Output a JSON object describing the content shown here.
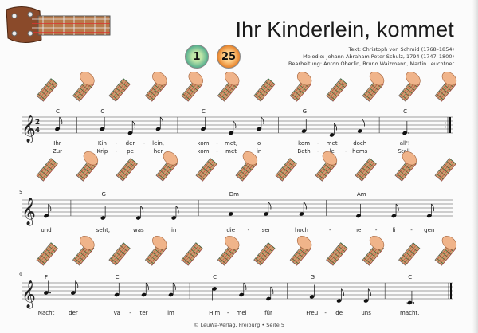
{
  "header": {
    "title": "Ihr Kinderlein, kommet",
    "credits": [
      "Text: Christoph von Schmid (1768–1854)",
      "Melodie: Johann Abraham Peter Schulz, 1794 (1747–1800)",
      "Bearbeitung: Anton Oberlin, Bruno Waizmann, Martin Leuchtner"
    ],
    "badges": [
      {
        "value": "1",
        "color": "#4aa88a"
      },
      {
        "value": "25",
        "color": "#e47a20"
      }
    ]
  },
  "time_signature": "2/4",
  "systems": [
    {
      "measure_number": "",
      "chords": [
        "C",
        "C",
        "C",
        "G",
        "C"
      ],
      "notes": [
        [
          "G4",
          8
        ],
        "|",
        [
          "G4",
          4
        ],
        [
          "E4",
          8
        ],
        [
          "G4",
          8
        ],
        "|",
        [
          "G4",
          4
        ],
        [
          "E4",
          8
        ],
        [
          "G4",
          8
        ],
        "|",
        [
          "F4",
          4
        ],
        [
          "D4",
          8
        ],
        [
          "F4",
          8
        ],
        "|",
        [
          "E4",
          4.5
        ],
        ":|"
      ],
      "lyrics": [
        [
          "Ihr",
          "Kin-",
          "der-",
          "lein,",
          "kom-",
          "met,",
          "o",
          "kom-",
          "met",
          "doch",
          "all'!"
        ],
        [
          "Zur",
          "Krip-",
          "pe",
          "her",
          "kom-",
          "met",
          "in",
          "Beth-",
          "le-",
          "hems",
          "Stall,"
        ]
      ],
      "diagrams": 12
    },
    {
      "measure_number": "5",
      "chords": [
        "",
        "G",
        "Dm",
        "Am"
      ],
      "notes": [
        [
          "E4",
          8
        ],
        "|",
        [
          "D4",
          4
        ],
        [
          "D4",
          8
        ],
        [
          "D4",
          8
        ],
        "|",
        [
          "F4",
          4
        ],
        [
          "F4",
          8
        ],
        [
          "F4",
          8
        ],
        "|",
        [
          "E4",
          4
        ],
        [
          "E4",
          8
        ],
        [
          "E4",
          8
        ]
      ],
      "lyrics": [
        [
          "und",
          "seht,",
          "was",
          "in",
          "die-",
          "ser",
          "hoch-",
          "hei-",
          "li-",
          "gen"
        ]
      ],
      "diagrams": 11
    },
    {
      "measure_number": "9",
      "chords": [
        "F",
        "C",
        "C",
        "G",
        "C"
      ],
      "notes": [
        [
          "A4",
          4.5
        ],
        [
          "A4",
          8
        ],
        "|",
        [
          "G4",
          4
        ],
        [
          "G4",
          8
        ],
        [
          "G4",
          8
        ],
        "|",
        [
          "C5",
          4
        ],
        [
          "G4",
          8
        ],
        [
          "E4",
          8
        ],
        "|",
        [
          "F4",
          4
        ],
        [
          "D4",
          8
        ],
        [
          "D4",
          8
        ],
        "|",
        [
          "C4",
          4.5
        ],
        "||"
      ],
      "lyrics": [
        [
          "Nacht",
          "der",
          "Va-",
          "ter",
          "im",
          "Him-",
          "mel",
          "für",
          "Freu-",
          "de",
          "uns",
          "macht."
        ]
      ],
      "diagrams": 12
    }
  ],
  "footer": "© LeuWa-Verlag, Freiburg  •  Seite 5"
}
